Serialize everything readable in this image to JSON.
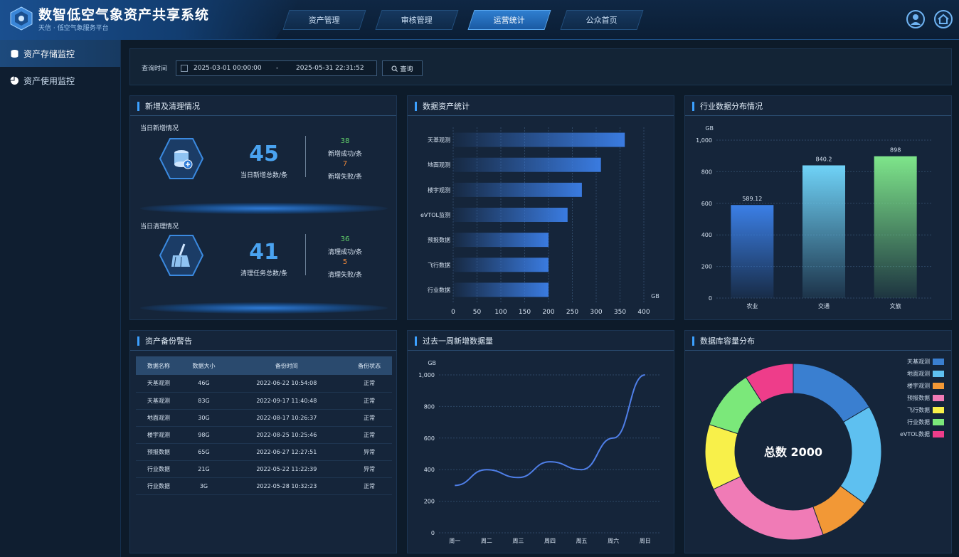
{
  "header": {
    "title": "数智低空气象资产共享系统",
    "subtitle": "天信 · 低空气象服务平台",
    "nav": [
      {
        "label": "资产管理",
        "active": false
      },
      {
        "label": "审核管理",
        "active": false
      },
      {
        "label": "运营统计",
        "active": true
      },
      {
        "label": "公众首页",
        "active": false
      }
    ],
    "icons": [
      "user-icon",
      "home-icon"
    ]
  },
  "sidebar": {
    "items": [
      {
        "label": "资产存储监控",
        "icon": "database-icon",
        "active": true
      },
      {
        "label": "资产使用监控",
        "icon": "pie-icon",
        "active": false
      }
    ]
  },
  "query": {
    "label": "查询时间",
    "start": "2025-03-01 00:00:00",
    "separator": "-",
    "end": "2025-05-31 22:31:52",
    "button": "查询"
  },
  "panel_add": {
    "title": "新增及清理情况",
    "add": {
      "label": "当日新增情况",
      "total": "45",
      "total_caption": "当日新增总数/条",
      "ok": "38",
      "ok_caption": "新增成功/条",
      "fail": "7",
      "fail_caption": "新增失败/条"
    },
    "clean": {
      "label": "当日清理情况",
      "total": "41",
      "total_caption": "清理任务总数/条",
      "ok": "36",
      "ok_caption": "清理成功/条",
      "fail": "5",
      "fail_caption": "清理失败/条"
    }
  },
  "panel_backup": {
    "title": "资产备份警告",
    "headers": [
      "数据名称",
      "数据大小",
      "备份时间",
      "备份状态"
    ],
    "rows": [
      [
        "天基观测",
        "46G",
        "2022-06-22 10:54:08",
        "正常"
      ],
      [
        "天基观测",
        "83G",
        "2022-09-17 11:40:48",
        "正常"
      ],
      [
        "地面观测",
        "30G",
        "2022-08-17 10:26:37",
        "正常"
      ],
      [
        "楼宇观测",
        "98G",
        "2022-08-25 10:25:46",
        "正常"
      ],
      [
        "预报数据",
        "65G",
        "2022-06-27 12:27:51",
        "异常"
      ],
      [
        "行业数据",
        "21G",
        "2022-05-22 11:22:39",
        "异常"
      ],
      [
        "行业数据",
        "3G",
        "2022-05-28 10:32:23",
        "正常"
      ]
    ]
  },
  "chart_data": [
    {
      "type": "bar",
      "orientation": "horizontal",
      "title": "数据资产统计",
      "categories": [
        "天基观测",
        "地面观测",
        "楼宇观测",
        "eVTOL监测",
        "预报数据",
        "飞行数据",
        "行业数据"
      ],
      "values": [
        360,
        310,
        270,
        240,
        200,
        200,
        200
      ],
      "xlabel": "GB",
      "xlim": [
        0,
        400
      ],
      "ticks": [
        "0",
        "50",
        "100",
        "150",
        "200",
        "250",
        "300",
        "350",
        "400"
      ],
      "grid": true,
      "color": "#3a7be0"
    },
    {
      "type": "bar",
      "title": "行业数据分布情况",
      "categories": [
        "农业",
        "交通",
        "文旅"
      ],
      "values": [
        589.12,
        840.2,
        898
      ],
      "data_labels": [
        "589.12",
        "840.2",
        "898"
      ],
      "ylabel": "GB",
      "ylim": [
        0,
        1000
      ],
      "ticks": [
        "0",
        "200",
        "400",
        "600",
        "800",
        "1,000"
      ],
      "grid": true,
      "colors": [
        "#3b7fe6",
        "#6fd2f7",
        "#7ee58a"
      ]
    },
    {
      "type": "line",
      "title": "过去一周新增数据量",
      "categories": [
        "周一",
        "周二",
        "周三",
        "周四",
        "周五",
        "周六",
        "周日"
      ],
      "values": [
        300,
        400,
        350,
        450,
        400,
        600,
        1000
      ],
      "ylabel": "GB",
      "ylim": [
        0,
        1000
      ],
      "ticks": [
        "0",
        "200",
        "400",
        "600",
        "800",
        "1,000"
      ],
      "grid": true,
      "color": "#4f7fe8"
    },
    {
      "type": "pie",
      "donut": true,
      "title": "数据库容量分布",
      "center_label": "总数 2000",
      "series": [
        {
          "name": "天基观测",
          "value": 330,
          "color": "#3a7fd0"
        },
        {
          "name": "地面观测",
          "value": 370,
          "color": "#5ec0f0"
        },
        {
          "name": "楼宇观测",
          "value": 190,
          "color": "#f29836"
        },
        {
          "name": "预报数据",
          "value": 470,
          "color": "#f07bb6"
        },
        {
          "name": "飞行数据",
          "value": 240,
          "color": "#f8f04a"
        },
        {
          "name": "行业数据",
          "value": 220,
          "color": "#7be87a"
        },
        {
          "name": "eVTOL数据",
          "value": 180,
          "color": "#ee3d8a"
        }
      ],
      "legend": "top-right"
    }
  ],
  "colors": {
    "accent": "#3ca0ff",
    "ok": "#63d36b",
    "fail": "#f08a3c",
    "panel": "#15253a"
  }
}
